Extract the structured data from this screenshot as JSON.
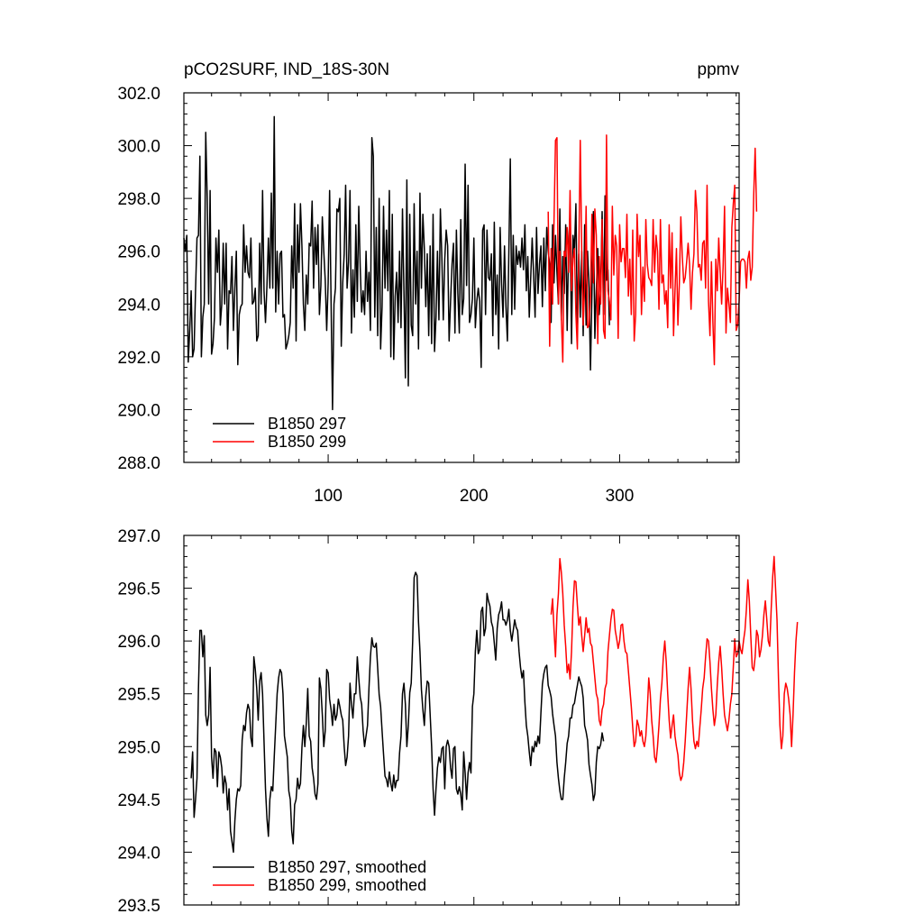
{
  "figure": {
    "title_left": "pCO2SURF, IND_18S-30N",
    "title_right": "ppmv",
    "colors": {
      "series1": "#000000",
      "series2": "#ff0000",
      "axes": "#000000"
    }
  },
  "chart_data": [
    {
      "type": "line",
      "title": "pCO2SURF, IND_18S-30N",
      "units": "ppmv",
      "xlim": [
        1,
        382
      ],
      "ylim": [
        288.0,
        302.0
      ],
      "x_ticks": [
        100,
        200,
        300
      ],
      "x_tick_labels": [
        "100",
        "200",
        "300"
      ],
      "y_ticks": [
        288.0,
        290.0,
        292.0,
        294.0,
        296.0,
        298.0,
        300.0,
        302.0
      ],
      "y_tick_labels": [
        "288.0",
        "290.0",
        "292.0",
        "294.0",
        "296.0",
        "298.0",
        "300.0",
        "302.0"
      ],
      "legend": [
        "B1850 297",
        "B1850 299"
      ],
      "legend_position": "bottom-left",
      "series": [
        {
          "name": "B1850 297",
          "color": "#000000",
          "x_start": 1,
          "values": [
            296.5,
            296.0,
            296.6,
            291.8,
            293.0,
            294.5,
            292.0,
            292.3,
            294.5,
            296.5,
            296.6,
            299.6,
            292.0,
            293.5,
            294.0,
            300.5,
            298.0,
            294.0,
            298.3,
            292.1,
            292.5,
            293.5,
            296.5,
            295.2,
            296.8,
            293.2,
            294.0,
            296.3,
            294.0,
            296.3,
            292.3,
            294.5,
            294.4,
            295.8,
            293.0,
            294.6,
            296.0,
            291.7,
            293.6,
            293.9,
            294.0,
            297.0,
            295.2,
            296.2,
            295.2,
            295.0,
            296.5,
            294.0,
            294.1,
            294.6,
            292.6,
            292.8,
            296.3,
            294.0,
            298.3,
            294.5,
            293.3,
            294.7,
            296.5,
            294.6,
            298.2,
            294.6,
            301.1,
            293.7,
            296.0,
            294.0,
            295.9,
            296.0,
            293.5,
            293.6,
            292.3,
            292.5,
            292.8,
            293.3,
            296.2,
            294.6,
            297.8,
            292.6,
            297.0,
            295.2,
            297.8,
            296.2,
            294.0,
            293.0,
            295.1,
            294.0,
            296.3,
            296.2,
            297.9,
            294.6,
            296.9,
            295.5,
            297.0,
            293.6,
            294.7,
            297.3,
            296.0,
            294.9,
            293.0,
            294.8,
            298.3,
            294.1,
            290.0,
            294.0,
            294.6,
            297.6,
            297.5,
            298.0,
            292.4,
            294.8,
            295.9,
            298.5,
            294.6,
            295.6,
            298.3,
            292.9,
            295.3,
            293.5,
            297.0,
            294.1,
            297.7,
            295.4,
            293.7,
            294.5,
            293.6,
            296.0,
            294.1,
            295.2,
            293.0,
            300.3,
            299.6,
            293.5,
            296.9,
            292.8,
            298.0,
            292.3,
            293.9,
            297.7,
            294.6,
            296.8,
            294.5,
            298.3,
            292.0,
            297.4,
            291.9,
            294.3,
            295.2,
            293.3,
            296.0,
            293.1,
            297.6,
            294.5,
            291.2,
            298.7,
            290.9,
            297.4,
            293.2,
            292.8,
            297.8,
            294.0,
            296.0,
            292.3,
            298.2,
            294.6,
            297.4,
            296.1,
            293.9,
            295.9,
            292.8,
            296.2,
            292.5,
            297.4,
            292.2,
            293.5,
            296.0,
            293.4,
            297.6,
            295.8,
            293.4,
            295.7,
            296.8,
            296.2,
            292.6,
            294.1,
            295.5,
            296.3,
            292.9,
            296.8,
            294.4,
            292.9,
            297.2,
            293.6,
            294.2,
            299.3,
            294.7,
            298.5,
            293.3,
            293.6,
            294.2,
            296.5,
            293.1,
            294.1,
            294.6,
            294.1,
            291.6,
            296.8,
            297.0,
            293.6,
            296.8,
            295.0,
            294.9,
            295.9,
            292.8,
            297.1,
            293.6,
            295.1,
            292.3,
            296.9,
            294.8,
            293.5,
            296.2,
            293.9,
            292.6,
            296.0,
            299.5,
            293.6,
            296.6,
            293.8,
            296.2,
            295.5,
            296.0,
            295.4,
            296.5,
            295.3,
            297.0,
            294.5,
            295.8,
            293.5,
            295.0,
            296.5,
            295.1,
            293.5,
            296.9,
            294.4,
            295.5,
            296.2,
            293.9,
            296.5,
            294.5,
            296.9,
            296.0,
            295.5,
            293.3,
            297.0,
            294.8,
            296.6,
            295.2,
            294.0,
            297.6,
            293.4,
            295.8,
            294.4,
            297.0,
            293.0,
            296.3,
            297.4,
            292.5,
            296.6,
            296.0,
            297.8,
            293.1,
            295.9,
            293.5,
            296.0,
            292.8,
            297.0,
            293.2,
            296.0,
            294.6,
            291.5,
            294.4,
            297.5,
            292.7,
            294.5,
            296.1,
            293.6,
            294.5,
            297.5,
            293.6,
            298.1,
            294.9,
            295.3,
            293.2
          ]
        },
        {
          "name": "B1850 299",
          "color": "#ff0000",
          "x_start": 251,
          "values": [
            297.5,
            292.4,
            296.1,
            294.0,
            297.2,
            300.2,
            300.3,
            294.0,
            296.0,
            293.5,
            291.8,
            296.0,
            295.8,
            296.9,
            295.2,
            298.3,
            294.5,
            295.7,
            296.1,
            293.6,
            292.3,
            296.0,
            300.2,
            296.0,
            293.2,
            294.6,
            297.7,
            293.1,
            293.2,
            294.3,
            297.4,
            294.8,
            297.6,
            296.6,
            292.5,
            295.8,
            294.0,
            297.2,
            293.0,
            292.7,
            300.4,
            294.5,
            294.1,
            293.4,
            297.7,
            295.1,
            296.6,
            296.2,
            292.7,
            297.0,
            295.6,
            296.1,
            296.1,
            295.0,
            297.4,
            294.3,
            295.7,
            293.6,
            296.8,
            292.6,
            293.6,
            297.4,
            295.8,
            296.6,
            293.6,
            295.4,
            294.1,
            297.2,
            295.5,
            295.0,
            294.9,
            294.7,
            297.2,
            295.2,
            296.6,
            296.0,
            293.8,
            297.2,
            294.8,
            295.1,
            294.0,
            294.5,
            293.1,
            297.0,
            294.6,
            296.7,
            292.8,
            294.5,
            296.1,
            293.2,
            294.8,
            297.3,
            295.8,
            294.8,
            295.0,
            295.6,
            296.3,
            295.5,
            293.8,
            295.2,
            295.9,
            298.3,
            297.5,
            295.4,
            295.5,
            294.9,
            296.3,
            296.4,
            294.6,
            298.5,
            294.1,
            292.8,
            295.6,
            293.3,
            291.7,
            295.7,
            294.5,
            296.5,
            295.2,
            294.0,
            295.4,
            297.7,
            292.9,
            294.6,
            294.0,
            293.3,
            296.9,
            297.8,
            298.5,
            293.0,
            293.2,
            294.1,
            295.6,
            295.7,
            295.7,
            295.6,
            294.6,
            295.7,
            296.0,
            294.9,
            295.4,
            298.1,
            299.9,
            297.5
          ]
        }
      ]
    },
    {
      "type": "line",
      "title": "",
      "xlim": [
        1,
        382
      ],
      "ylim": [
        293.5,
        297.0
      ],
      "x_ticks": [
        100,
        200,
        300
      ],
      "y_ticks": [
        293.5,
        294.0,
        294.5,
        295.0,
        295.5,
        296.0,
        296.5,
        297.0
      ],
      "y_tick_labels": [
        "293.5",
        "294.0",
        "294.5",
        "295.0",
        "295.5",
        "296.0",
        "296.5",
        "297.0"
      ],
      "legend": [
        "B1850 297, smoothed",
        "B1850 299, smoothed"
      ],
      "legend_position": "bottom-left",
      "series": [
        {
          "name": "B1850 297, smoothed",
          "color": "#000000",
          "x_start": 6,
          "values": [
            294.7,
            294.95,
            294.33,
            294.5,
            294.7,
            295.55,
            296.1,
            296.1,
            295.85,
            296.05,
            295.3,
            295.2,
            295.3,
            295.75,
            294.9,
            294.7,
            294.98,
            294.95,
            294.62,
            294.95,
            294.9,
            294.8,
            294.56,
            294.72,
            294.65,
            294.4,
            294.6,
            294.2,
            294.1,
            294.0,
            294.3,
            294.5,
            294.6,
            294.58,
            294.63,
            295.06,
            295.2,
            295.15,
            295.32,
            295.4,
            295.35,
            295.08,
            295.0,
            295.85,
            295.73,
            295.55,
            295.25,
            295.62,
            295.7,
            295.5,
            295.05,
            294.6,
            294.32,
            294.15,
            294.5,
            294.62,
            294.58,
            294.9,
            295.2,
            295.5,
            295.65,
            295.73,
            295.7,
            295.5,
            295.1,
            295.0,
            294.9,
            294.58,
            294.5,
            294.2,
            294.08,
            294.45,
            294.5,
            294.7,
            294.6,
            294.65,
            294.99,
            295.2,
            295.0,
            295.22,
            295.55,
            295.1,
            295.05,
            294.8,
            294.7,
            294.55,
            294.5,
            294.65,
            295.65,
            295.55,
            295.3,
            295.0,
            295.15,
            295.73,
            295.7,
            295.45,
            295.35,
            295.2,
            295.4,
            295.25,
            295.3,
            295.45,
            295.38,
            295.3,
            295.25,
            295.0,
            294.82,
            294.9,
            295.1,
            295.6,
            295.4,
            295.27,
            295.5,
            295.5,
            295.85,
            295.65,
            295.47,
            295.4,
            295.15,
            295.0,
            295.1,
            295.2,
            295.55,
            295.85,
            296.03,
            295.95,
            295.94,
            295.98,
            295.74,
            295.49,
            295.38,
            295.15,
            294.93,
            294.72,
            294.69,
            294.62,
            294.76,
            294.65,
            294.58,
            294.73,
            294.61,
            294.68,
            294.68,
            294.94,
            295.1,
            295.5,
            295.6,
            295.4,
            295.0,
            295.2,
            295.51,
            295.6,
            296.0,
            296.6,
            296.65,
            296.62,
            296.18,
            295.9,
            295.54,
            295.35,
            295.2,
            295.48,
            295.62,
            295.6,
            295.3,
            295.0,
            294.6,
            294.35,
            294.6,
            294.8,
            294.9,
            294.85,
            294.98,
            295.0,
            294.6,
            295.0,
            295.06,
            295.0,
            294.8,
            294.7,
            294.98,
            295.0,
            294.6,
            294.55,
            294.62,
            294.55,
            294.4,
            294.95,
            294.75,
            294.5,
            294.75,
            294.85,
            294.75,
            295.38,
            295.5,
            295.9,
            296.1,
            295.88,
            295.92,
            296.28,
            296.32,
            296.05,
            296.12,
            296.45,
            296.38,
            296.33,
            296.18,
            296.13,
            295.98,
            295.82,
            296.12,
            296.25,
            296.29,
            296.37,
            296.2,
            296.2,
            296.15,
            296.2,
            296.3,
            296.1,
            296.0,
            296.1,
            296.2,
            296.13,
            296.1,
            295.9,
            295.75,
            295.65,
            295.72,
            295.42,
            295.2,
            295.1,
            294.95,
            294.82,
            295.0,
            294.95,
            295.05,
            295.0,
            295.1,
            295.03,
            295.32,
            295.59,
            295.69,
            295.75,
            295.77,
            295.58,
            295.53,
            295.47,
            295.31,
            295.2,
            295.1,
            294.85,
            294.7,
            294.58,
            294.5,
            294.5,
            294.7,
            294.85,
            295.03,
            295.1,
            295.27,
            295.27,
            295.39,
            295.41,
            295.5,
            295.58,
            295.66,
            295.61,
            295.57,
            295.46,
            295.2,
            295.14,
            295.06,
            294.83,
            294.73,
            294.64,
            294.49,
            294.55,
            294.85,
            295.0,
            294.98,
            295.02,
            295.13,
            295.05
          ]
        },
        {
          "name": "B1850 299, smoothed",
          "color": "#ff0000",
          "x_start": 253,
          "values": [
            296.25,
            296.4,
            296.1,
            295.85,
            296.25,
            296.45,
            296.78,
            296.65,
            296.45,
            296.15,
            295.95,
            295.7,
            295.78,
            295.64,
            295.9,
            296.32,
            296.57,
            296.56,
            296.34,
            296.15,
            296.23,
            296.05,
            295.9,
            296.05,
            296.22,
            296.08,
            296.12,
            295.98,
            295.95,
            295.8,
            295.65,
            295.5,
            295.45,
            295.25,
            295.2,
            295.35,
            295.4,
            295.55,
            295.6,
            295.9,
            296.05,
            296.2,
            296.3,
            296.29,
            296.1,
            296.02,
            295.93,
            296.0,
            296.15,
            296.16,
            296.0,
            295.9,
            295.88,
            295.72,
            295.55,
            295.38,
            295.18,
            295.0,
            295.05,
            295.25,
            295.2,
            295.1,
            295.15,
            295.05,
            295.0,
            295.1,
            295.35,
            295.65,
            295.5,
            295.25,
            295.1,
            294.9,
            294.85,
            295.0,
            295.2,
            295.45,
            295.6,
            295.85,
            296.0,
            295.8,
            295.5,
            295.25,
            295.08,
            295.2,
            295.3,
            295.1,
            295.0,
            294.92,
            294.75,
            294.68,
            294.72,
            294.85,
            295.05,
            295.3,
            295.55,
            295.75,
            295.55,
            295.25,
            295.05,
            294.98,
            295.05,
            295.0,
            295.18,
            295.35,
            295.55,
            295.65,
            295.85,
            296.02,
            296.0,
            295.8,
            295.55,
            295.35,
            295.2,
            295.3,
            295.58,
            295.8,
            295.95,
            295.75,
            295.5,
            295.3,
            295.22,
            295.15,
            295.25,
            295.4,
            295.5,
            295.75,
            296.02,
            295.85,
            295.88,
            296.0,
            295.92,
            295.88,
            296.0,
            296.1,
            296.3,
            296.58,
            296.38,
            296.05,
            295.75,
            295.72,
            295.85,
            296.1,
            296.05,
            295.85,
            295.92,
            296.05,
            296.25,
            296.38,
            296.2,
            296.0,
            295.95,
            296.3,
            296.6,
            296.8,
            296.5,
            296.2,
            295.65,
            295.2,
            294.98,
            295.1,
            295.5,
            295.6,
            295.55,
            295.45,
            295.3,
            295.0,
            295.3,
            295.7,
            296.0,
            296.18
          ]
        }
      ]
    }
  ]
}
